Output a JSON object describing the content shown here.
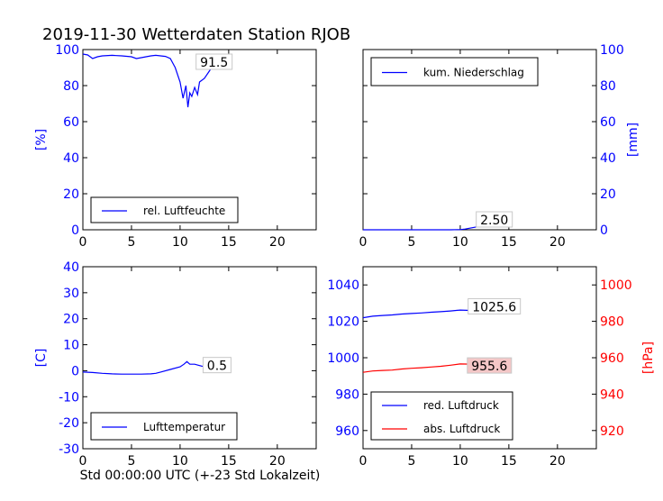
{
  "figure": {
    "title": "2019-11-30 Wetterdaten Station RJOB",
    "xlabel": "Std 00:00:00 UTC (+-23 Std Lokalzeit)"
  },
  "colors": {
    "blue": "#0000ff",
    "red": "#ff0000",
    "black": "#000000",
    "label_box_red": "#f4c7c7"
  },
  "chart_data": [
    {
      "id": "humidity",
      "type": "line",
      "xlim": [
        0,
        24
      ],
      "xticks": [
        0,
        5,
        10,
        15,
        20
      ],
      "ylim": [
        0,
        100
      ],
      "yticks": [
        0,
        20,
        40,
        60,
        80,
        100
      ],
      "ylabel": "[%]",
      "ylabel_color": "#0000ff",
      "yaxis_side": "left",
      "legend_placement": "lower-left",
      "grid": false,
      "series": [
        {
          "name": "rel. Luftfeuchte",
          "color": "#0000ff",
          "axis": "left",
          "x": [
            0,
            0.5,
            1,
            1.5,
            2,
            3,
            4,
            5,
            5.5,
            6,
            6.5,
            7,
            7.5,
            8,
            8.5,
            9,
            9.5,
            10,
            10.3,
            10.6,
            10.8,
            11,
            11.2,
            11.5,
            11.8,
            12,
            12.5,
            13,
            13.5,
            14,
            14.5,
            15
          ],
          "y": [
            97.5,
            97,
            95,
            96,
            96.5,
            96.8,
            96.5,
            96,
            95,
            95.5,
            96,
            96.5,
            96.8,
            96.5,
            96.2,
            95,
            90,
            82,
            73,
            80,
            68,
            76,
            74,
            79,
            75,
            82,
            84,
            88,
            92,
            93,
            91.5,
            91.5
          ]
        }
      ],
      "value_labels": [
        {
          "text": "91.5",
          "x": 13.5,
          "y": 93,
          "axis": "left",
          "box": "white"
        }
      ]
    },
    {
      "id": "precip",
      "type": "line",
      "xlim": [
        0,
        24
      ],
      "xticks": [
        0,
        5,
        10,
        15,
        20
      ],
      "ylim": [
        0,
        100
      ],
      "yticks": [
        0,
        20,
        40,
        60,
        80,
        100
      ],
      "ylabel": "[mm]",
      "ylabel_color": "#0000ff",
      "yaxis_side": "right",
      "legend_placement": "upper-left",
      "grid": false,
      "series": [
        {
          "name": "kum. Niederschlag",
          "color": "#0000ff",
          "axis": "left",
          "x": [
            0,
            5,
            9,
            10,
            10.5,
            11,
            11.5,
            12,
            13,
            14,
            15
          ],
          "y": [
            0,
            0,
            0,
            0.1,
            0.4,
            0.9,
            1.4,
            1.8,
            2.2,
            2.4,
            2.5
          ]
        }
      ],
      "value_labels": [
        {
          "text": "2.50",
          "x": 13.5,
          "y": 5.5,
          "axis": "left",
          "box": "white"
        }
      ]
    },
    {
      "id": "temperature",
      "type": "line",
      "xlim": [
        0,
        24
      ],
      "xticks": [
        0,
        5,
        10,
        15,
        20
      ],
      "ylim": [
        -30,
        40
      ],
      "yticks": [
        -30,
        -20,
        -10,
        0,
        10,
        20,
        30,
        40
      ],
      "ylabel": "[C]",
      "ylabel_color": "#0000ff",
      "yaxis_side": "left",
      "legend_placement": "lower-left",
      "grid": false,
      "series": [
        {
          "name": "Lufttemperatur",
          "color": "#0000ff",
          "axis": "left",
          "x": [
            0,
            1,
            2,
            3,
            4,
            5,
            6,
            7,
            7.5,
            8,
            9,
            10,
            10.4,
            10.7,
            11,
            11.5,
            12,
            12.5,
            13,
            13.5,
            14,
            15
          ],
          "y": [
            -0.5,
            -0.7,
            -1,
            -1.2,
            -1.3,
            -1.3,
            -1.3,
            -1.2,
            -1,
            -0.5,
            0.5,
            1.5,
            2.5,
            3.5,
            2.5,
            2.5,
            2,
            1.5,
            1.2,
            1,
            0.8,
            0.5
          ]
        }
      ],
      "value_labels": [
        {
          "text": "0.5",
          "x": 13.8,
          "y": 2,
          "axis": "left",
          "box": "white"
        }
      ]
    },
    {
      "id": "pressure",
      "type": "line",
      "xlim": [
        0,
        24
      ],
      "xticks": [
        0,
        5,
        10,
        15,
        20
      ],
      "ylim": [
        950,
        1050
      ],
      "yticks": [
        960,
        980,
        1000,
        1020,
        1040
      ],
      "ylim_right": [
        910,
        1010
      ],
      "yticks_right": [
        920,
        940,
        960,
        980,
        1000
      ],
      "ylabel_right": "[hPa]",
      "ylabel_color": "#ff0000",
      "yaxis_side": "both",
      "legend_placement": "lower-left",
      "grid": false,
      "series": [
        {
          "name": "red. Luftdruck",
          "color": "#0000ff",
          "axis": "left",
          "x": [
            0,
            1,
            2,
            3,
            4,
            5,
            6,
            7,
            8,
            9,
            10,
            11,
            12,
            13,
            14,
            15
          ],
          "y": [
            1022,
            1022.8,
            1023.2,
            1023.5,
            1024,
            1024.3,
            1024.6,
            1025,
            1025.3,
            1025.7,
            1026.2,
            1026,
            1025.8,
            1025.9,
            1025.7,
            1025.6
          ]
        },
        {
          "name": "abs. Luftdruck",
          "color": "#ff0000",
          "axis": "right",
          "x": [
            0,
            1,
            2,
            3,
            4,
            5,
            6,
            7,
            8,
            9,
            10,
            11,
            12,
            13,
            14,
            15
          ],
          "y": [
            952,
            952.7,
            953,
            953.2,
            953.8,
            954.2,
            954.5,
            954.9,
            955.3,
            955.9,
            956.6,
            956.5,
            956.2,
            956,
            955.8,
            955.6
          ]
        }
      ],
      "value_labels": [
        {
          "text": "1025.6",
          "x": 13.5,
          "y": 1028,
          "axis": "left",
          "box": "white"
        },
        {
          "text": "955.6",
          "x": 13.0,
          "y": 955.5,
          "axis": "right",
          "box": "red"
        }
      ]
    }
  ]
}
